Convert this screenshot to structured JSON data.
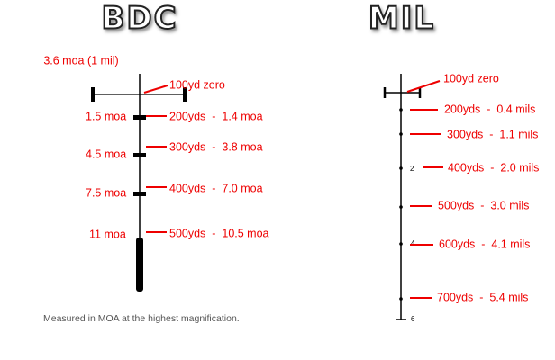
{
  "bdc": {
    "title": "BDC",
    "mil_label": "3.6 moa (1 mil)",
    "zero_label": "100yd zero",
    "moa_labels": [
      "1.5 moa",
      "4.5 moa",
      "7.5 moa",
      "11 moa"
    ],
    "range_labels": [
      "200yds  -  1.4 moa",
      "300yds  -  3.8 moa",
      "400yds  -  7.0 moa",
      "500yds  -  10.5 moa"
    ],
    "caption": "Measured in MOA at the highest magnification."
  },
  "mil": {
    "title": "MIL",
    "zero_label": "100yd zero",
    "range_labels": [
      "200yds  -  0.4 mils",
      "300yds  -  1.1 mils",
      "400yds  -  2.0 mils",
      "500yds  -  3.0 mils",
      "600yds  -  4.1 mils",
      "700yds  -  5.4 mils"
    ],
    "scale_numbers": [
      "2",
      "4",
      "6"
    ]
  }
}
